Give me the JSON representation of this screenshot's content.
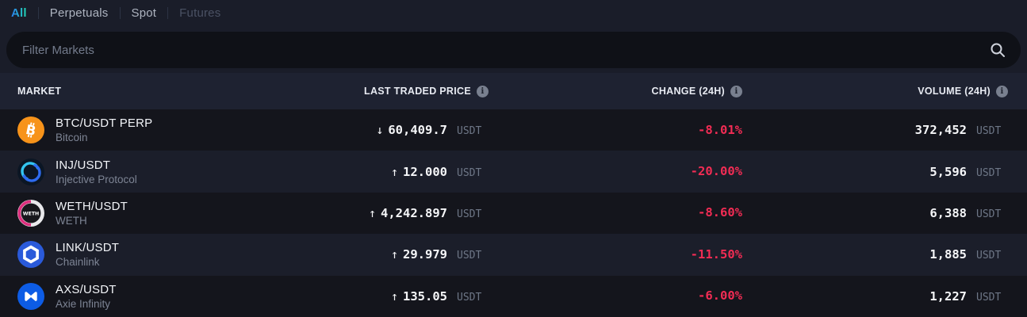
{
  "tabs": [
    {
      "label": "All",
      "state": "active"
    },
    {
      "label": "Perpetuals",
      "state": "normal"
    },
    {
      "label": "Spot",
      "state": "normal"
    },
    {
      "label": "Futures",
      "state": "disabled"
    }
  ],
  "search": {
    "placeholder": "Filter Markets",
    "value": ""
  },
  "table": {
    "headers": {
      "market": "MARKET",
      "price": "LAST TRADED PRICE",
      "change": "CHANGE (24H)",
      "volume": "VOLUME (24H)"
    },
    "rows": [
      {
        "pair": "BTC/USDT PERP",
        "name": "Bitcoin",
        "icon": "btc",
        "direction": "down",
        "price": "60,409.7",
        "quote": "USDT",
        "change": "-8.01%",
        "volume": "372,452"
      },
      {
        "pair": "INJ/USDT",
        "name": "Injective Protocol",
        "icon": "inj",
        "direction": "up",
        "price": "12.000",
        "quote": "USDT",
        "change": "-20.00%",
        "volume": "5,596"
      },
      {
        "pair": "WETH/USDT",
        "name": "WETH",
        "icon": "weth",
        "direction": "up",
        "price": "4,242.897",
        "quote": "USDT",
        "change": "-8.60%",
        "volume": "6,388"
      },
      {
        "pair": "LINK/USDT",
        "name": "Chainlink",
        "icon": "link",
        "direction": "up",
        "price": "29.979",
        "quote": "USDT",
        "change": "-11.50%",
        "volume": "1,885"
      },
      {
        "pair": "AXS/USDT",
        "name": "Axie Infinity",
        "icon": "axs",
        "direction": "up",
        "price": "135.05",
        "quote": "USDT",
        "change": "-6.00%",
        "volume": "1,227"
      }
    ]
  },
  "colors": {
    "positive": "#13DD96",
    "negative": "#F22C54",
    "accent_gradient": [
      "#2B7DF0",
      "#21D6B5",
      "#3CE97C"
    ],
    "bitcoin_orange": "#F7931A",
    "chainlink_blue": "#2A5ADA",
    "axie_blue": "#0D5CE5",
    "weth_pink": "#DE2F7E"
  }
}
